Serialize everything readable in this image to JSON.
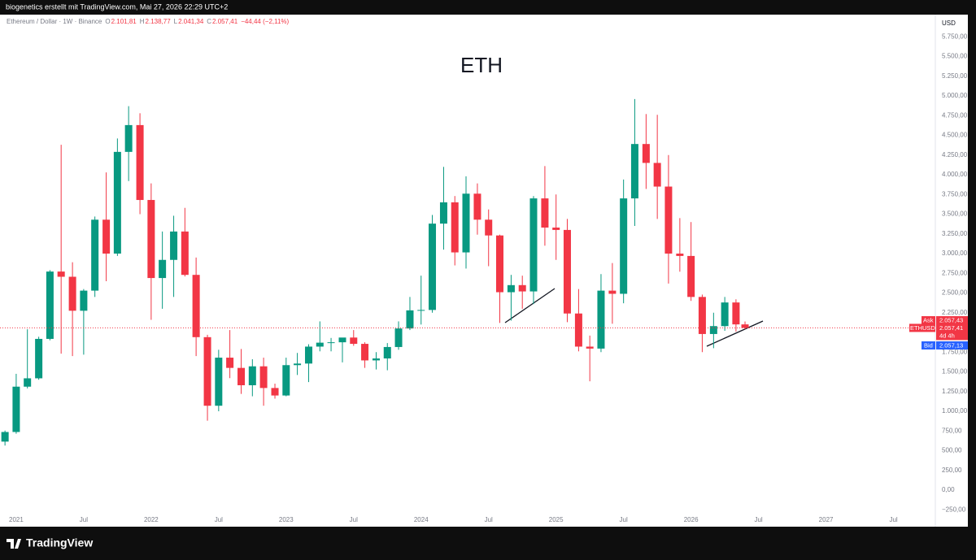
{
  "header": {
    "text": "biogenetics erstellt mit TradingView.com, Mai 27, 2026 22:29 UTC+2"
  },
  "footer": {
    "brand": "TradingView"
  },
  "chart_data": {
    "type": "candlestick",
    "title": "ETH",
    "symbol_label": "Ethereum / Dollar · 1W · Binance",
    "ohlc_letters": [
      "O",
      "H",
      "L",
      "C"
    ],
    "ohlc_labels": [
      "2.101,81",
      "2.138,77",
      "2.041,34",
      "2.057,41"
    ],
    "change_label": "−44,44 (−2,11%)",
    "currency": "USD",
    "price_tags": {
      "ask": "Ask",
      "ask_price": "2.057,43",
      "symbol": "ETHUSD",
      "last_price": "2.057,41",
      "countdown": "4d 4h",
      "bid": "Bid",
      "bid_price": "2.057,13"
    },
    "up_color": "#089981",
    "down_color": "#f23645",
    "x": [
      2020.917,
      2021.0,
      2021.083,
      2021.167,
      2021.25,
      2021.333,
      2021.417,
      2021.5,
      2021.583,
      2021.667,
      2021.75,
      2021.833,
      2021.917,
      2022.0,
      2022.083,
      2022.167,
      2022.25,
      2022.333,
      2022.417,
      2022.5,
      2022.583,
      2022.667,
      2022.75,
      2022.833,
      2022.917,
      2023.0,
      2023.083,
      2023.167,
      2023.25,
      2023.333,
      2023.417,
      2023.5,
      2023.583,
      2023.667,
      2023.75,
      2023.833,
      2023.917,
      2024.0,
      2024.083,
      2024.167,
      2024.25,
      2024.333,
      2024.417,
      2024.5,
      2024.583,
      2024.667,
      2024.75,
      2024.833,
      2024.917,
      2025.0,
      2025.083,
      2025.167,
      2025.25,
      2025.333,
      2025.417,
      2025.5,
      2025.583,
      2025.667,
      2025.75,
      2025.833,
      2025.917,
      2026.0,
      2026.083,
      2026.167,
      2026.25,
      2026.333,
      2026.4
    ],
    "open": [
      615,
      737,
      1312,
      1418,
      1918,
      2772,
      2706,
      2275,
      2530,
      3430,
      3000,
      4290,
      4630,
      3680,
      2690,
      2920,
      3280,
      2730,
      1940,
      1070,
      1680,
      1550,
      1330,
      1570,
      1295,
      1200,
      1585,
      1605,
      1820,
      1870,
      1875,
      1935,
      1855,
      1645,
      1670,
      1815,
      2050,
      2280,
      2285,
      3380,
      3650,
      3015,
      3760,
      3430,
      3230,
      2510,
      2600,
      2520,
      3700,
      3330,
      3300,
      2240,
      1820,
      1795,
      2530,
      2490,
      3700,
      4390,
      4150,
      3850,
      3000,
      2970,
      2450,
      1980,
      2080,
      2380,
      2101.81
    ],
    "high": [
      755,
      1475,
      2040,
      1945,
      2790,
      4380,
      2890,
      2550,
      3470,
      4030,
      4460,
      4870,
      4780,
      3890,
      3280,
      3480,
      3580,
      2950,
      1970,
      1780,
      2030,
      1790,
      1660,
      1680,
      1350,
      1680,
      1740,
      1850,
      2140,
      1930,
      1930,
      2030,
      1875,
      1750,
      1865,
      2140,
      2450,
      2720,
      3490,
      4100,
      3730,
      3980,
      3890,
      3560,
      3240,
      2730,
      2720,
      3730,
      4110,
      3750,
      3440,
      2550,
      1960,
      2740,
      2880,
      3940,
      4960,
      4770,
      4760,
      4250,
      3450,
      3400,
      2480,
      2250,
      2450,
      2420,
      2138.77
    ],
    "low": [
      565,
      715,
      1290,
      1400,
      1900,
      1730,
      1700,
      1718,
      2450,
      2650,
      2970,
      3920,
      3500,
      2160,
      2300,
      2450,
      2710,
      1700,
      880,
      1000,
      1420,
      1220,
      1190,
      1070,
      1160,
      1190,
      1460,
      1370,
      1760,
      1760,
      1620,
      1830,
      1550,
      1530,
      1520,
      1780,
      2030,
      2100,
      2250,
      3050,
      2850,
      2810,
      3240,
      2840,
      2120,
      2150,
      2300,
      2360,
      3100,
      2920,
      2130,
      1760,
      1380,
      1750,
      2110,
      2370,
      3350,
      3820,
      3440,
      2620,
      2770,
      2400,
      1750,
      1800,
      2020,
      2010,
      2041.34
    ],
    "close": [
      737,
      1312,
      1418,
      1918,
      2772,
      2706,
      2275,
      2530,
      3430,
      3000,
      4290,
      4630,
      3680,
      2690,
      2920,
      3280,
      2730,
      1940,
      1070,
      1680,
      1550,
      1330,
      1570,
      1295,
      1200,
      1585,
      1605,
      1820,
      1870,
      1875,
      1935,
      1855,
      1645,
      1670,
      1815,
      2050,
      2280,
      2285,
      3380,
      3650,
      3015,
      3760,
      3430,
      3230,
      2510,
      2600,
      2520,
      3700,
      3330,
      3300,
      2240,
      1820,
      1795,
      2530,
      2490,
      3700,
      4390,
      4150,
      3850,
      3000,
      2970,
      2450,
      1980,
      2080,
      2380,
      2101.81,
      2057.41
    ],
    "xlim": [
      2020.88,
      2027.81
    ],
    "xticks": [
      2021,
      {
        "value": 2021.5,
        "label": "Jul"
      },
      2022,
      {
        "value": 2022.5,
        "label": "Jul"
      },
      2023,
      {
        "value": 2023.5,
        "label": "Jul"
      },
      2024,
      {
        "value": 2024.5,
        "label": "Jul"
      },
      2025,
      {
        "value": 2025.5,
        "label": "Jul"
      },
      2026,
      {
        "value": 2026.5,
        "label": "Jul"
      },
      2027,
      {
        "value": 2027.5,
        "label": "Jul"
      }
    ],
    "ylim": [
      -464,
      6031
    ],
    "yticks": [
      {
        "value": -250,
        "label": "−250,00"
      },
      {
        "value": 0,
        "label": "0,00"
      },
      {
        "value": 250,
        "label": "250,00"
      },
      {
        "value": 500,
        "label": "500,00"
      },
      {
        "value": 750,
        "label": "750,00"
      },
      {
        "value": 1000,
        "label": "1.000,00"
      },
      {
        "value": 1250,
        "label": "1.250,00"
      },
      {
        "value": 1500,
        "label": "1.500,00"
      },
      {
        "value": 1750,
        "label": "1.750,00"
      },
      {
        "value": 2000,
        "label": "2.000,00"
      },
      {
        "value": 2250,
        "label": "2.250,00"
      },
      {
        "value": 2500,
        "label": "2.500,00"
      },
      {
        "value": 2750,
        "label": "2.750,00"
      },
      {
        "value": 3000,
        "label": "3.000,00"
      },
      {
        "value": 3250,
        "label": "3.250,00"
      },
      {
        "value": 3500,
        "label": "3.500,00"
      },
      {
        "value": 3750,
        "label": "3.750,00"
      },
      {
        "value": 4000,
        "label": "4.000,00"
      },
      {
        "value": 4250,
        "label": "4.250,00"
      },
      {
        "value": 4500,
        "label": "4.500,00"
      },
      {
        "value": 4750,
        "label": "4.750,00"
      },
      {
        "value": 5000,
        "label": "5.000,00"
      },
      {
        "value": 5250,
        "label": "5.250,00"
      },
      {
        "value": 5500,
        "label": "5.500,00"
      },
      {
        "value": 5750,
        "label": "5.750,00"
      }
    ],
    "grid": false
  }
}
